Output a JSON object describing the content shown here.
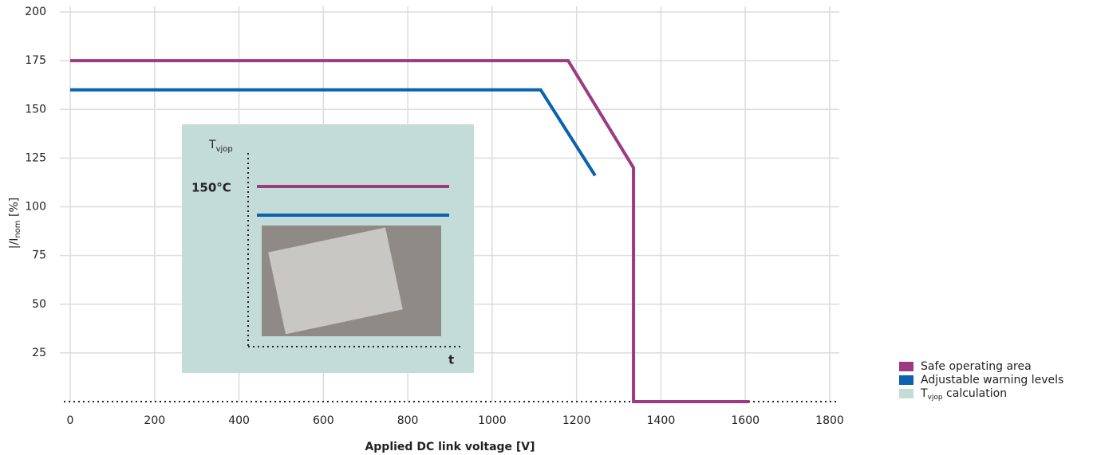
{
  "chart_data": {
    "type": "line",
    "xlabel": "Applied DC link voltage [V]",
    "ylabel_parts": [
      "|/I",
      "nom",
      " [%]"
    ],
    "xlim": [
      0,
      1800
    ],
    "xticks": [
      0,
      200,
      400,
      600,
      800,
      1000,
      1200,
      1400,
      1600,
      1800
    ],
    "ylim": [
      0,
      200
    ],
    "yticks": [
      25,
      50,
      75,
      100,
      125,
      150,
      175,
      200
    ],
    "grid": true,
    "legend": "lower right outside",
    "series": [
      {
        "name": "Safe operating area",
        "color": "#9c3a82",
        "x": [
          0,
          1180,
          1335,
          1335,
          1610
        ],
        "values": [
          175,
          175,
          120,
          0,
          0
        ]
      },
      {
        "name": "Adjustable warning levels",
        "color": "#0b62ae",
        "x": [
          0,
          1115,
          1244,
          1244
        ],
        "values": [
          160,
          160,
          116,
          116
        ]
      }
    ],
    "inset": {
      "color": "#c4dcd7",
      "legend_parts": [
        "T",
        "vjop",
        " calculation"
      ],
      "y_label_parts": [
        "T",
        "vjop"
      ],
      "level_label": "150°C",
      "x_label": "t"
    }
  }
}
